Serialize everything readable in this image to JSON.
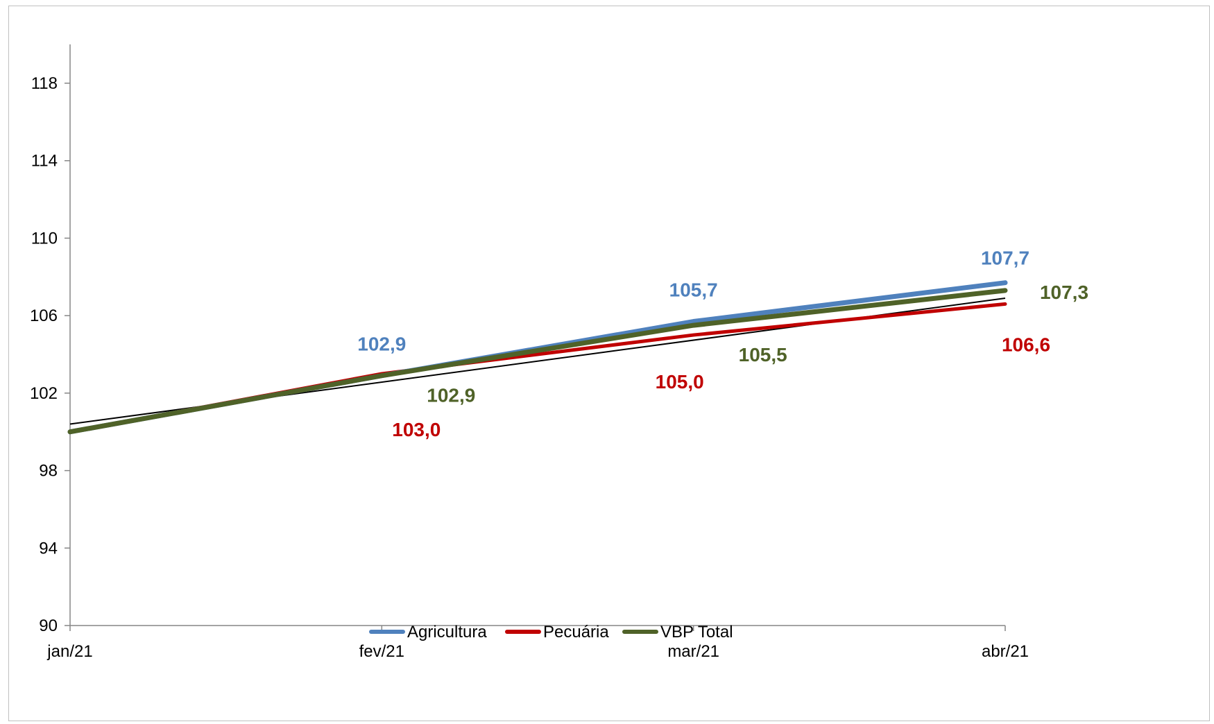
{
  "chart_data": {
    "type": "line",
    "categories": [
      "jan/21",
      "fev/21",
      "mar/21",
      "abr/21"
    ],
    "ylim": [
      90,
      118
    ],
    "yticks": [
      90,
      94,
      98,
      102,
      106,
      110,
      114,
      118
    ],
    "series": [
      {
        "name": "Agricultura",
        "color": "#4f81bd",
        "values": [
          100,
          102.9,
          105.7,
          107.7
        ],
        "labels": [
          "",
          "102,9",
          "105,7",
          "107,7"
        ]
      },
      {
        "name": "Pecuária",
        "color": "#c00000",
        "values": [
          100,
          103.0,
          105.0,
          106.6
        ],
        "labels": [
          "",
          "103,0",
          "105,0",
          "106,6"
        ]
      },
      {
        "name": "VBP Total",
        "color": "#4f6228",
        "values": [
          100,
          102.9,
          105.5,
          107.3
        ],
        "labels": [
          "",
          "102,9",
          "105,5",
          "107,3"
        ]
      }
    ],
    "trendline": {
      "color": "#000000",
      "values": [
        100.4,
        102.6,
        104.7,
        106.9
      ]
    },
    "grid": false,
    "legend": "bottom"
  }
}
